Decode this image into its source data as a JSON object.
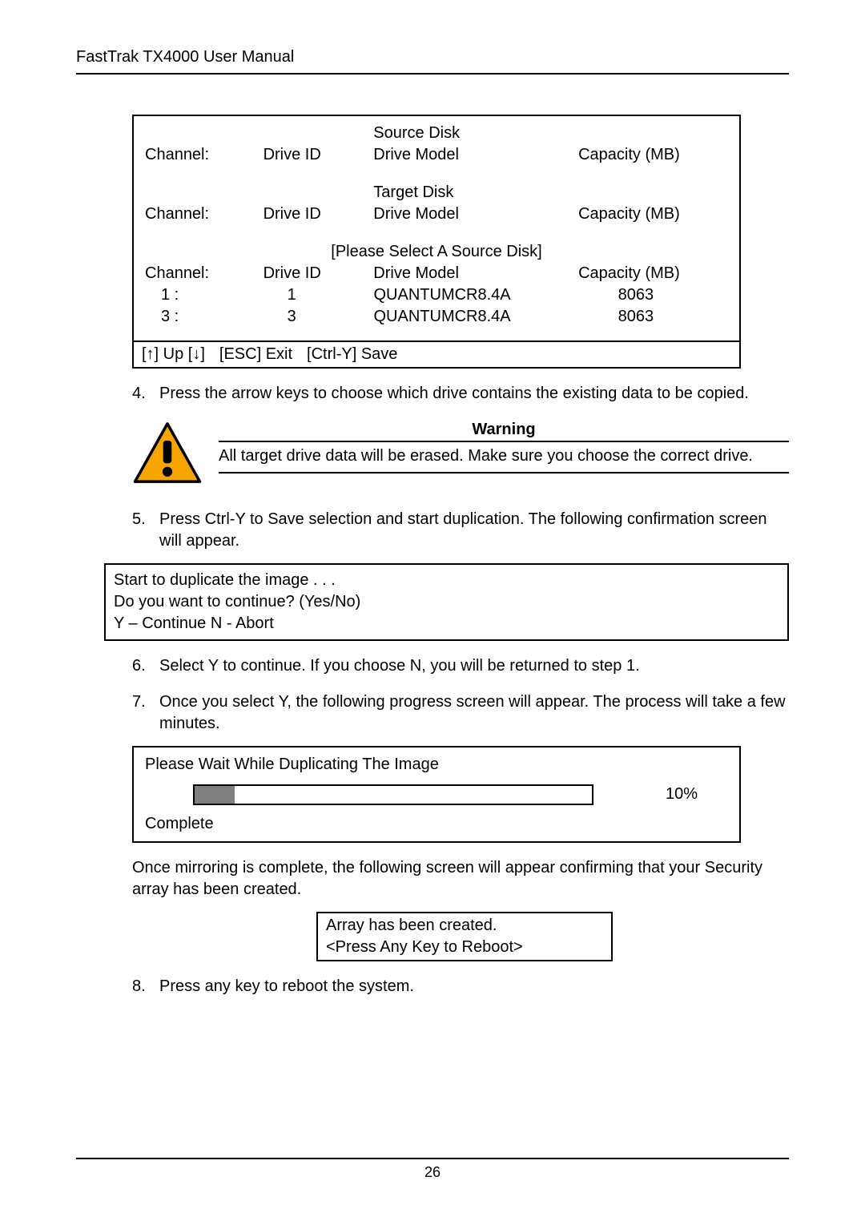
{
  "doc": {
    "header": "FastTrak TX4000 User Manual",
    "page_number": "26"
  },
  "screen1": {
    "source_title": "Source Disk",
    "target_title": "Target Disk",
    "select_prompt": "[Please Select A Source Disk]",
    "cols": {
      "channel": "Channel:",
      "drive_id": "Drive ID",
      "drive_model": "Drive Model",
      "capacity": "Capacity (MB)"
    },
    "rows": [
      {
        "channel": "1 :",
        "id": "1",
        "model": "QUANTUMCR8.4A",
        "cap": "8063"
      },
      {
        "channel": "3 :",
        "id": "3",
        "model": "QUANTUMCR8.4A",
        "cap": "8063"
      }
    ],
    "footer": {
      "up": "[↑] Up [↓]",
      "esc": "[ESC] Exit",
      "save": "[Ctrl-Y] Save"
    }
  },
  "steps": {
    "s4_num": "4.",
    "s4_txt": "Press the arrow keys to choose which drive contains the existing data to be copied.",
    "s5_num": "5.",
    "s5_txt": "Press Ctrl-Y to Save selection and start duplication. The following confirmation screen will appear.",
    "s6_num": "6.",
    "s6_txt": "Select Y to continue. If you choose N, you will be returned to step 1.",
    "s7_num": "7.",
    "s7_txt": "Once you select Y, the following progress screen will appear. The process will take a few minutes.",
    "s8_num": "8.",
    "s8_txt": "Press any key to reboot the system."
  },
  "warning": {
    "title": "Warning",
    "body": "All target drive data will be erased. Make sure you choose the correct drive.",
    "icon_bg": "#f7a600",
    "icon_border": "#000000",
    "icon_inner": "#000000"
  },
  "confirm_box": {
    "l1": "Start to duplicate the image . . .",
    "l2": "Do you want to continue? (Yes/No)",
    "l3": "Y – Continue  N - Abort"
  },
  "progress": {
    "title": "Please Wait While Duplicating The Image",
    "percent_value": 10,
    "percent_label": "10%",
    "complete": "Complete",
    "bar_bg": "#ffffff",
    "bar_fill": "#808080",
    "bar_border": "#000000"
  },
  "after_progress": "Once mirroring is complete, the following screen will appear confirming that your Security array has been created.",
  "created_box": {
    "l1": "Array has been created.",
    "l2": "<Press Any Key to Reboot>"
  }
}
